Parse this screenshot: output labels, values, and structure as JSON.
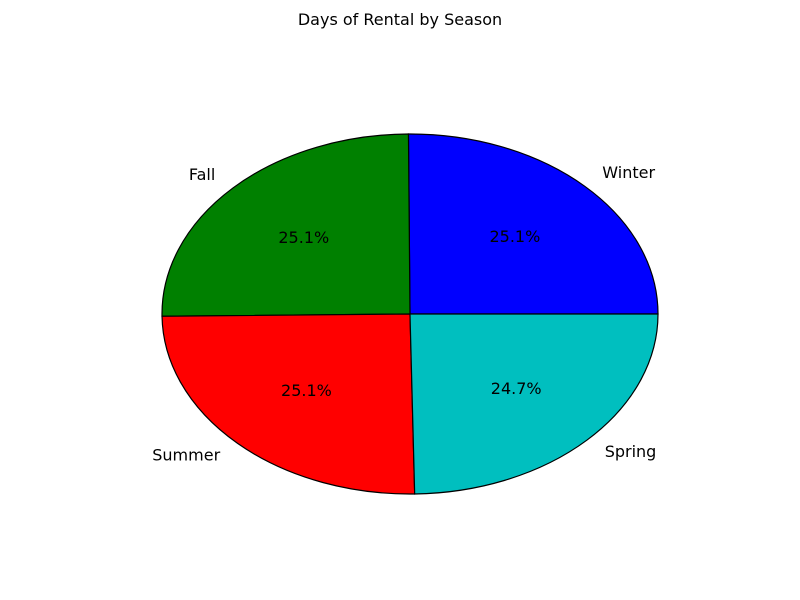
{
  "chart_data": {
    "type": "pie",
    "title": "Days of Rental by Season",
    "slices": [
      {
        "label": "Winter",
        "value": 25.1,
        "pct_label": "25.1%",
        "color": "#0000ff"
      },
      {
        "label": "Fall",
        "value": 25.1,
        "pct_label": "25.1%",
        "color": "#008000"
      },
      {
        "label": "Summer",
        "value": 25.1,
        "pct_label": "25.1%",
        "color": "#ff0000"
      },
      {
        "label": "Spring",
        "value": 24.7,
        "pct_label": "24.7%",
        "color": "#00bfbf"
      }
    ]
  }
}
